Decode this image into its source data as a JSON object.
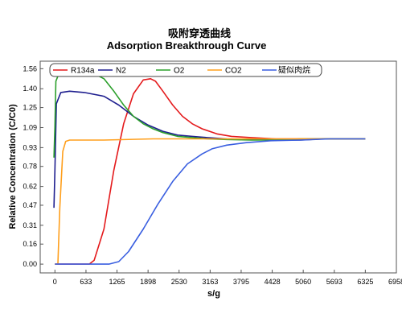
{
  "chart_data": {
    "type": "line",
    "title_cn": "吸附穿透曲线",
    "title": "Adsorption Breakthrough Curve",
    "xlabel": "s/g",
    "ylabel": "Relative Concentration (C/C0)",
    "xlim": [
      -300,
      6958
    ],
    "ylim": [
      -0.07,
      1.62
    ],
    "x_ticks": [
      0,
      633,
      1265,
      1898,
      2530,
      3163,
      3795,
      4428,
      5060,
      5693,
      6325,
      6958
    ],
    "y_ticks": [
      0.0,
      0.16,
      0.31,
      0.47,
      0.62,
      0.78,
      0.93,
      1.09,
      1.25,
      1.4,
      1.56
    ],
    "legend_position": "top",
    "grid": false,
    "legend_entries": [
      "R134a",
      "N2",
      "O2",
      "CO2",
      "疑似肉烷"
    ],
    "series": [
      {
        "name": "R134a",
        "color": "#e41a1c",
        "x": [
          0,
          700,
          800,
          1000,
          1200,
          1400,
          1600,
          1800,
          1950,
          2050,
          2200,
          2400,
          2600,
          2800,
          3000,
          3300,
          3600,
          4000,
          4500,
          5000,
          5500,
          6000,
          6325
        ],
        "y": [
          0.0,
          0.0,
          0.03,
          0.28,
          0.75,
          1.12,
          1.36,
          1.47,
          1.48,
          1.46,
          1.38,
          1.27,
          1.18,
          1.12,
          1.08,
          1.04,
          1.02,
          1.01,
          1.0,
          1.0,
          1.0,
          1.0,
          1.0
        ]
      },
      {
        "name": "N2",
        "color": "#1f1f8f",
        "x": [
          -20,
          0,
          30,
          120,
          300,
          600,
          1000,
          1300,
          1600,
          1900,
          2200,
          2500,
          2800,
          3100,
          3500,
          4000,
          4500,
          5000,
          5500,
          6000,
          6325
        ],
        "y": [
          0.45,
          0.75,
          1.28,
          1.37,
          1.38,
          1.37,
          1.34,
          1.27,
          1.18,
          1.11,
          1.06,
          1.03,
          1.02,
          1.01,
          1.0,
          0.995,
          0.99,
          0.99,
          1.0,
          1.0,
          1.0
        ]
      },
      {
        "name": "O2",
        "color": "#2ca02c",
        "x": [
          -20,
          0,
          20,
          80,
          200,
          500,
          800,
          1000,
          1200,
          1400,
          1600,
          1800,
          2000,
          2200,
          2500,
          2800,
          3100,
          3500,
          4000,
          4500,
          5000,
          5500,
          6000,
          6325
        ],
        "y": [
          0.85,
          1.1,
          1.46,
          1.52,
          1.53,
          1.53,
          1.52,
          1.48,
          1.38,
          1.27,
          1.18,
          1.12,
          1.08,
          1.05,
          1.02,
          1.01,
          1.0,
          0.995,
          0.99,
          0.99,
          1.0,
          1.0,
          1.0,
          1.0
        ]
      },
      {
        "name": "CO2",
        "color": "#ff9f1c",
        "x": [
          0,
          60,
          100,
          160,
          220,
          300,
          500,
          1000,
          2000,
          3000,
          4000,
          5000,
          6000,
          6325
        ],
        "y": [
          0.0,
          0.0,
          0.45,
          0.9,
          0.98,
          0.99,
          0.99,
          0.99,
          1.0,
          1.0,
          1.0,
          1.0,
          1.0,
          1.0
        ]
      },
      {
        "name": "疑似肉烷",
        "color": "#3a5fe0",
        "x": [
          0,
          1100,
          1300,
          1500,
          1800,
          2100,
          2400,
          2700,
          3000,
          3200,
          3500,
          3900,
          4400,
          5000,
          5600,
          6325
        ],
        "y": [
          0.0,
          0.0,
          0.02,
          0.1,
          0.28,
          0.48,
          0.66,
          0.8,
          0.88,
          0.92,
          0.95,
          0.97,
          0.985,
          0.99,
          1.0,
          1.0
        ]
      }
    ]
  }
}
